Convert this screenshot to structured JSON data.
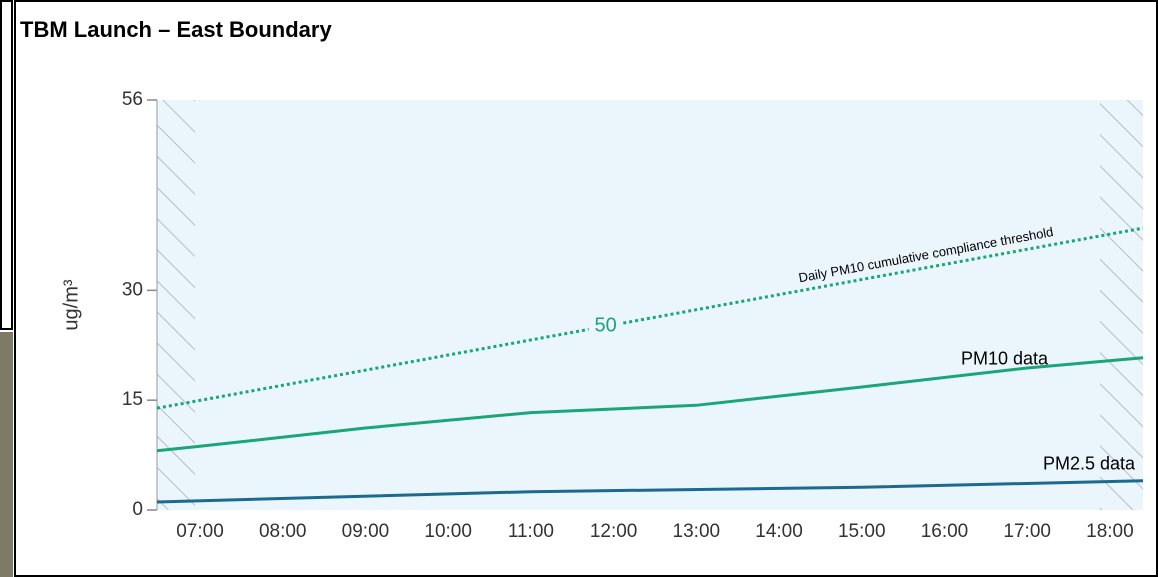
{
  "chart_data": {
    "type": "line",
    "title": "TBM Launch – East Boundary",
    "ylabel": "ug/m³",
    "xlim": [
      6.48,
      18.4
    ],
    "ylim": [
      0,
      56
    ],
    "xticks": [
      {
        "value": 7,
        "label": "07:00"
      },
      {
        "value": 8,
        "label": "08:00"
      },
      {
        "value": 9,
        "label": "09:00"
      },
      {
        "value": 10,
        "label": "10:00"
      },
      {
        "value": 11,
        "label": "11:00"
      },
      {
        "value": 12,
        "label": "12:00"
      },
      {
        "value": 13,
        "label": "13:00"
      },
      {
        "value": 14,
        "label": "14:00"
      },
      {
        "value": 15,
        "label": "15:00"
      },
      {
        "value": 16,
        "label": "16:00"
      },
      {
        "value": 17,
        "label": "17:00"
      },
      {
        "value": 18,
        "label": "18:00"
      }
    ],
    "yticks": [
      0,
      15,
      30,
      56
    ],
    "series": [
      {
        "name": "Daily PM10 cumulative compliance threshold",
        "color": "#1aa57a",
        "style": "dotted",
        "x": [
          6.48,
          18.4
        ],
        "values": [
          13.9,
          38.5
        ],
        "annotation": "50"
      },
      {
        "name": "PM10 data",
        "color": "#1aa57a",
        "style": "solid",
        "x": [
          6.48,
          7,
          9,
          11,
          13,
          15,
          17,
          18.4
        ],
        "values": [
          8.1,
          8.7,
          11.2,
          13.3,
          14.3,
          16.8,
          19.4,
          20.8
        ]
      },
      {
        "name": "PM2.5 data",
        "color": "#1d6a8f",
        "style": "solid",
        "x": [
          6.48,
          11,
          15,
          18.4
        ],
        "values": [
          1.1,
          2.5,
          3.1,
          4.0
        ]
      }
    ]
  }
}
